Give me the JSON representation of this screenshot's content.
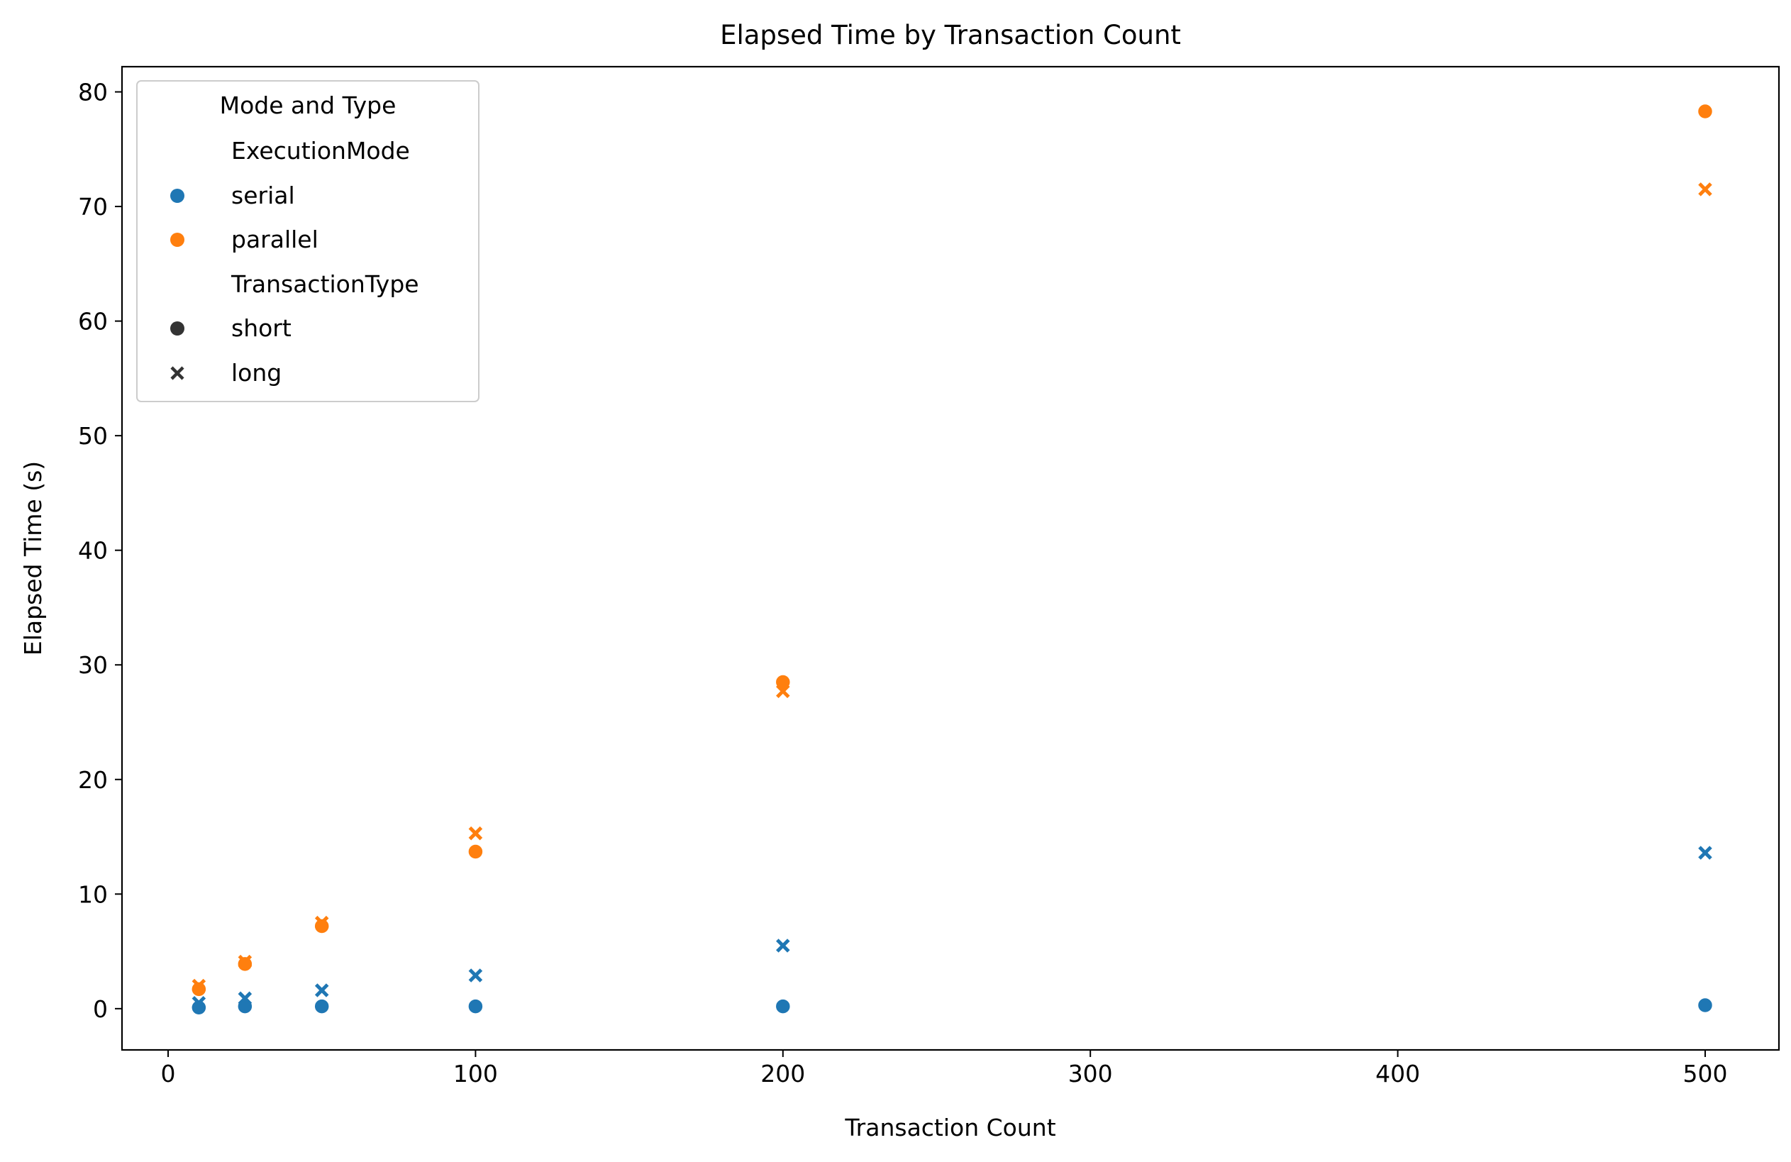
{
  "chart_data": {
    "type": "scatter",
    "title": "Elapsed Time by Transaction Count",
    "xlabel": "Transaction Count",
    "ylabel": "Elapsed Time (s)",
    "xlim": [
      -15,
      524
    ],
    "ylim": [
      -3.6,
      82.2
    ],
    "xticks": [
      0,
      100,
      200,
      300,
      400,
      500
    ],
    "yticks": [
      0,
      10,
      20,
      30,
      40,
      50,
      60,
      70,
      80
    ],
    "grid": false,
    "legend": {
      "title": "Mode and Type",
      "placement": "upper-left",
      "hue_title": "ExecutionMode",
      "style_title": "TransactionType",
      "hue_entries": [
        {
          "label": "serial",
          "color": "#1f77b4"
        },
        {
          "label": "parallel",
          "color": "#ff7f0e"
        }
      ],
      "style_entries": [
        {
          "label": "short",
          "marker": "circle"
        },
        {
          "label": "long",
          "marker": "x"
        }
      ]
    },
    "series": [
      {
        "mode": "serial",
        "type": "short",
        "color": "#1f77b4",
        "marker": "circle",
        "x": [
          10,
          25,
          50,
          100,
          200,
          500
        ],
        "y": [
          0.1,
          0.2,
          0.2,
          0.2,
          0.2,
          0.3
        ]
      },
      {
        "mode": "serial",
        "type": "long",
        "color": "#1f77b4",
        "marker": "x",
        "x": [
          10,
          25,
          50,
          100,
          200,
          500
        ],
        "y": [
          0.5,
          0.9,
          1.6,
          2.9,
          5.5,
          13.6
        ]
      },
      {
        "mode": "parallel",
        "type": "short",
        "color": "#ff7f0e",
        "marker": "circle",
        "x": [
          10,
          25,
          50,
          100,
          200,
          500
        ],
        "y": [
          1.7,
          3.9,
          7.2,
          13.7,
          28.5,
          78.3
        ]
      },
      {
        "mode": "parallel",
        "type": "long",
        "color": "#ff7f0e",
        "marker": "x",
        "x": [
          10,
          25,
          50,
          100,
          200,
          500
        ],
        "y": [
          2.0,
          4.1,
          7.5,
          15.3,
          27.7,
          71.5
        ]
      }
    ]
  }
}
